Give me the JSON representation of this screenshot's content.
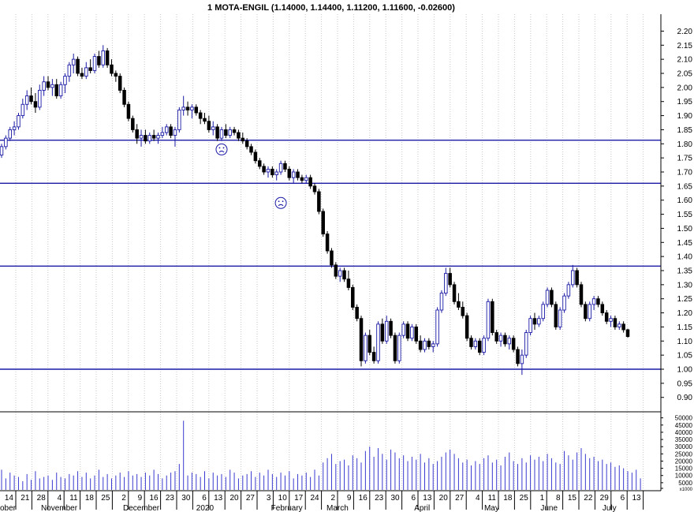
{
  "chart_data": {
    "type": "candlestick",
    "title": "1 MOTA-ENGIL (1.14000, 1.14400, 1.11200, 1.11600, -0.02600)",
    "price_axis": {
      "ylim": [
        0.86,
        2.26
      ],
      "ticks": [
        "2.20",
        "2.15",
        "2.10",
        "2.05",
        "2.00",
        "1.95",
        "1.90",
        "1.85",
        "1.80",
        "1.75",
        "1.70",
        "1.65",
        "1.60",
        "1.55",
        "1.50",
        "1.45",
        "1.40",
        "1.35",
        "1.30",
        "1.25",
        "1.20",
        "1.15",
        "1.10",
        "1.05",
        "1.00",
        "0.95",
        "0.90"
      ]
    },
    "volume_axis": {
      "ylim": [
        0,
        52000
      ],
      "ticks": [
        "50000",
        "45000",
        "40000",
        "35000",
        "30000",
        "25000",
        "20000",
        "15000",
        "10000",
        "5000",
        "x1000"
      ]
    },
    "horizontal_lines": [
      1.813,
      1.66,
      1.366,
      1.0
    ],
    "sad_face_markers": [
      {
        "date": "2020-01-08",
        "price": 1.78
      },
      {
        "date": "2020-02-05",
        "price": 1.59
      }
    ],
    "x_day_labels": [
      "14",
      "21",
      "28",
      "4",
      "11",
      "18",
      "25",
      "2",
      "9",
      "16",
      "23",
      "30",
      "6",
      "13",
      "20",
      "27",
      "3",
      "10",
      "17",
      "24",
      "2",
      "9",
      "16",
      "23",
      "30",
      "6",
      "13",
      "20",
      "27",
      "4",
      "11",
      "18",
      "25",
      "1",
      "8",
      "15",
      "22",
      "29",
      "6",
      "13"
    ],
    "x_month_labels": [
      "ober",
      "November",
      "December",
      "2020",
      "February",
      "March",
      "April",
      "May",
      "June",
      "July"
    ],
    "candles": [
      {
        "o": 1.76,
        "h": 1.8,
        "l": 1.75,
        "c": 1.79
      },
      {
        "o": 1.79,
        "h": 1.83,
        "l": 1.78,
        "c": 1.82
      },
      {
        "o": 1.82,
        "h": 1.86,
        "l": 1.81,
        "c": 1.85
      },
      {
        "o": 1.85,
        "h": 1.88,
        "l": 1.83,
        "c": 1.86
      },
      {
        "o": 1.86,
        "h": 1.91,
        "l": 1.85,
        "c": 1.9
      },
      {
        "o": 1.9,
        "h": 1.96,
        "l": 1.89,
        "c": 1.94
      },
      {
        "o": 1.94,
        "h": 1.99,
        "l": 1.92,
        "c": 1.97
      },
      {
        "o": 1.97,
        "h": 2.0,
        "l": 1.94,
        "c": 1.95
      },
      {
        "o": 1.95,
        "h": 1.98,
        "l": 1.91,
        "c": 1.93
      },
      {
        "o": 1.93,
        "h": 2.01,
        "l": 1.92,
        "c": 1.99
      },
      {
        "o": 1.99,
        "h": 2.04,
        "l": 1.97,
        "c": 2.02
      },
      {
        "o": 2.02,
        "h": 2.04,
        "l": 1.99,
        "c": 2.0
      },
      {
        "o": 2.0,
        "h": 2.03,
        "l": 1.97,
        "c": 2.01
      },
      {
        "o": 2.01,
        "h": 2.03,
        "l": 1.96,
        "c": 1.97
      },
      {
        "o": 1.97,
        "h": 2.02,
        "l": 1.96,
        "c": 2.01
      },
      {
        "o": 2.01,
        "h": 2.05,
        "l": 1.98,
        "c": 2.04
      },
      {
        "o": 2.04,
        "h": 2.09,
        "l": 2.02,
        "c": 2.08
      },
      {
        "o": 2.08,
        "h": 2.12,
        "l": 2.05,
        "c": 2.1
      },
      {
        "o": 2.1,
        "h": 2.11,
        "l": 2.04,
        "c": 2.05
      },
      {
        "o": 2.05,
        "h": 2.07,
        "l": 2.03,
        "c": 2.04
      },
      {
        "o": 2.04,
        "h": 2.09,
        "l": 2.03,
        "c": 2.07
      },
      {
        "o": 2.07,
        "h": 2.1,
        "l": 2.05,
        "c": 2.06
      },
      {
        "o": 2.06,
        "h": 2.12,
        "l": 2.05,
        "c": 2.11
      },
      {
        "o": 2.11,
        "h": 2.13,
        "l": 2.07,
        "c": 2.08
      },
      {
        "o": 2.08,
        "h": 2.15,
        "l": 2.07,
        "c": 2.13
      },
      {
        "o": 2.13,
        "h": 2.14,
        "l": 2.07,
        "c": 2.08
      },
      {
        "o": 2.08,
        "h": 2.1,
        "l": 2.04,
        "c": 2.05
      },
      {
        "o": 2.05,
        "h": 2.06,
        "l": 2.02,
        "c": 2.04
      },
      {
        "o": 2.04,
        "h": 2.05,
        "l": 1.98,
        "c": 1.99
      },
      {
        "o": 1.99,
        "h": 2.0,
        "l": 1.93,
        "c": 1.94
      },
      {
        "o": 1.94,
        "h": 1.95,
        "l": 1.88,
        "c": 1.89
      },
      {
        "o": 1.89,
        "h": 1.9,
        "l": 1.84,
        "c": 1.85
      },
      {
        "o": 1.85,
        "h": 1.87,
        "l": 1.8,
        "c": 1.82
      },
      {
        "o": 1.82,
        "h": 1.85,
        "l": 1.79,
        "c": 1.83
      },
      {
        "o": 1.83,
        "h": 1.85,
        "l": 1.8,
        "c": 1.81
      },
      {
        "o": 1.81,
        "h": 1.84,
        "l": 1.8,
        "c": 1.83
      },
      {
        "o": 1.83,
        "h": 1.85,
        "l": 1.81,
        "c": 1.82
      },
      {
        "o": 1.82,
        "h": 1.84,
        "l": 1.8,
        "c": 1.83
      },
      {
        "o": 1.83,
        "h": 1.86,
        "l": 1.82,
        "c": 1.84
      },
      {
        "o": 1.84,
        "h": 1.87,
        "l": 1.83,
        "c": 1.86
      },
      {
        "o": 1.86,
        "h": 1.87,
        "l": 1.82,
        "c": 1.83
      },
      {
        "o": 1.83,
        "h": 1.86,
        "l": 1.79,
        "c": 1.85
      },
      {
        "o": 1.85,
        "h": 1.93,
        "l": 1.84,
        "c": 1.92
      },
      {
        "o": 1.92,
        "h": 1.97,
        "l": 1.9,
        "c": 1.93
      },
      {
        "o": 1.93,
        "h": 1.95,
        "l": 1.9,
        "c": 1.92
      },
      {
        "o": 1.92,
        "h": 1.94,
        "l": 1.89,
        "c": 1.93
      },
      {
        "o": 1.93,
        "h": 1.94,
        "l": 1.9,
        "c": 1.91
      },
      {
        "o": 1.91,
        "h": 1.92,
        "l": 1.87,
        "c": 1.89
      },
      {
        "o": 1.89,
        "h": 1.91,
        "l": 1.87,
        "c": 1.88
      },
      {
        "o": 1.88,
        "h": 1.9,
        "l": 1.84,
        "c": 1.85
      },
      {
        "o": 1.85,
        "h": 1.88,
        "l": 1.83,
        "c": 1.86
      },
      {
        "o": 1.86,
        "h": 1.87,
        "l": 1.81,
        "c": 1.82
      },
      {
        "o": 1.82,
        "h": 1.86,
        "l": 1.81,
        "c": 1.85
      },
      {
        "o": 1.85,
        "h": 1.87,
        "l": 1.82,
        "c": 1.83
      },
      {
        "o": 1.83,
        "h": 1.86,
        "l": 1.82,
        "c": 1.85
      },
      {
        "o": 1.85,
        "h": 1.86,
        "l": 1.83,
        "c": 1.84
      },
      {
        "o": 1.84,
        "h": 1.85,
        "l": 1.81,
        "c": 1.82
      },
      {
        "o": 1.82,
        "h": 1.84,
        "l": 1.8,
        "c": 1.81
      },
      {
        "o": 1.81,
        "h": 1.82,
        "l": 1.78,
        "c": 1.79
      },
      {
        "o": 1.79,
        "h": 1.8,
        "l": 1.76,
        "c": 1.77
      },
      {
        "o": 1.77,
        "h": 1.78,
        "l": 1.73,
        "c": 1.74
      },
      {
        "o": 1.74,
        "h": 1.75,
        "l": 1.71,
        "c": 1.72
      },
      {
        "o": 1.72,
        "h": 1.73,
        "l": 1.69,
        "c": 1.7
      },
      {
        "o": 1.7,
        "h": 1.72,
        "l": 1.68,
        "c": 1.71
      },
      {
        "o": 1.71,
        "h": 1.72,
        "l": 1.68,
        "c": 1.69
      },
      {
        "o": 1.69,
        "h": 1.71,
        "l": 1.67,
        "c": 1.7
      },
      {
        "o": 1.7,
        "h": 1.74,
        "l": 1.69,
        "c": 1.73
      },
      {
        "o": 1.73,
        "h": 1.74,
        "l": 1.7,
        "c": 1.71
      },
      {
        "o": 1.71,
        "h": 1.72,
        "l": 1.67,
        "c": 1.68
      },
      {
        "o": 1.68,
        "h": 1.71,
        "l": 1.66,
        "c": 1.7
      },
      {
        "o": 1.7,
        "h": 1.71,
        "l": 1.67,
        "c": 1.68
      },
      {
        "o": 1.68,
        "h": 1.69,
        "l": 1.66,
        "c": 1.67
      },
      {
        "o": 1.67,
        "h": 1.69,
        "l": 1.66,
        "c": 1.68
      },
      {
        "o": 1.68,
        "h": 1.69,
        "l": 1.64,
        "c": 1.65
      },
      {
        "o": 1.65,
        "h": 1.66,
        "l": 1.62,
        "c": 1.63
      },
      {
        "o": 1.63,
        "h": 1.64,
        "l": 1.55,
        "c": 1.56
      },
      {
        "o": 1.56,
        "h": 1.57,
        "l": 1.47,
        "c": 1.48
      },
      {
        "o": 1.48,
        "h": 1.49,
        "l": 1.41,
        "c": 1.42
      },
      {
        "o": 1.42,
        "h": 1.43,
        "l": 1.36,
        "c": 1.37
      },
      {
        "o": 1.37,
        "h": 1.38,
        "l": 1.32,
        "c": 1.33
      },
      {
        "o": 1.33,
        "h": 1.36,
        "l": 1.31,
        "c": 1.35
      },
      {
        "o": 1.35,
        "h": 1.36,
        "l": 1.31,
        "c": 1.32
      },
      {
        "o": 1.32,
        "h": 1.35,
        "l": 1.28,
        "c": 1.29
      },
      {
        "o": 1.29,
        "h": 1.3,
        "l": 1.21,
        "c": 1.22
      },
      {
        "o": 1.22,
        "h": 1.23,
        "l": 1.17,
        "c": 1.18
      },
      {
        "o": 1.18,
        "h": 1.19,
        "l": 1.01,
        "c": 1.03
      },
      {
        "o": 1.03,
        "h": 1.13,
        "l": 1.02,
        "c": 1.12
      },
      {
        "o": 1.12,
        "h": 1.14,
        "l": 1.05,
        "c": 1.06
      },
      {
        "o": 1.06,
        "h": 1.08,
        "l": 1.02,
        "c": 1.03
      },
      {
        "o": 1.03,
        "h": 1.17,
        "l": 1.02,
        "c": 1.16
      },
      {
        "o": 1.16,
        "h": 1.18,
        "l": 1.09,
        "c": 1.1
      },
      {
        "o": 1.1,
        "h": 1.19,
        "l": 1.09,
        "c": 1.17
      },
      {
        "o": 1.17,
        "h": 1.18,
        "l": 1.11,
        "c": 1.12
      },
      {
        "o": 1.12,
        "h": 1.13,
        "l": 1.02,
        "c": 1.03
      },
      {
        "o": 1.03,
        "h": 1.13,
        "l": 1.02,
        "c": 1.12
      },
      {
        "o": 1.12,
        "h": 1.17,
        "l": 1.11,
        "c": 1.16
      },
      {
        "o": 1.16,
        "h": 1.17,
        "l": 1.1,
        "c": 1.11
      },
      {
        "o": 1.11,
        "h": 1.16,
        "l": 1.1,
        "c": 1.15
      },
      {
        "o": 1.15,
        "h": 1.16,
        "l": 1.09,
        "c": 1.1
      },
      {
        "o": 1.1,
        "h": 1.12,
        "l": 1.06,
        "c": 1.07
      },
      {
        "o": 1.07,
        "h": 1.11,
        "l": 1.06,
        "c": 1.1
      },
      {
        "o": 1.1,
        "h": 1.11,
        "l": 1.07,
        "c": 1.08
      },
      {
        "o": 1.08,
        "h": 1.1,
        "l": 1.06,
        "c": 1.09
      },
      {
        "o": 1.09,
        "h": 1.22,
        "l": 1.08,
        "c": 1.21
      },
      {
        "o": 1.21,
        "h": 1.28,
        "l": 1.2,
        "c": 1.27
      },
      {
        "o": 1.27,
        "h": 1.36,
        "l": 1.26,
        "c": 1.34
      },
      {
        "o": 1.34,
        "h": 1.36,
        "l": 1.29,
        "c": 1.3
      },
      {
        "o": 1.3,
        "h": 1.31,
        "l": 1.23,
        "c": 1.24
      },
      {
        "o": 1.24,
        "h": 1.27,
        "l": 1.21,
        "c": 1.22
      },
      {
        "o": 1.22,
        "h": 1.24,
        "l": 1.18,
        "c": 1.19
      },
      {
        "o": 1.19,
        "h": 1.2,
        "l": 1.1,
        "c": 1.11
      },
      {
        "o": 1.11,
        "h": 1.12,
        "l": 1.07,
        "c": 1.08
      },
      {
        "o": 1.08,
        "h": 1.11,
        "l": 1.07,
        "c": 1.1
      },
      {
        "o": 1.1,
        "h": 1.11,
        "l": 1.05,
        "c": 1.06
      },
      {
        "o": 1.06,
        "h": 1.12,
        "l": 1.05,
        "c": 1.11
      },
      {
        "o": 1.11,
        "h": 1.25,
        "l": 1.1,
        "c": 1.24
      },
      {
        "o": 1.24,
        "h": 1.25,
        "l": 1.12,
        "c": 1.13
      },
      {
        "o": 1.13,
        "h": 1.14,
        "l": 1.09,
        "c": 1.1
      },
      {
        "o": 1.1,
        "h": 1.13,
        "l": 1.08,
        "c": 1.12
      },
      {
        "o": 1.12,
        "h": 1.13,
        "l": 1.08,
        "c": 1.09
      },
      {
        "o": 1.09,
        "h": 1.12,
        "l": 1.07,
        "c": 1.11
      },
      {
        "o": 1.11,
        "h": 1.12,
        "l": 1.06,
        "c": 1.07
      },
      {
        "o": 1.07,
        "h": 1.08,
        "l": 1.01,
        "c": 1.02
      },
      {
        "o": 1.02,
        "h": 1.07,
        "l": 0.98,
        "c": 1.05
      },
      {
        "o": 1.05,
        "h": 1.14,
        "l": 1.04,
        "c": 1.13
      },
      {
        "o": 1.13,
        "h": 1.19,
        "l": 1.12,
        "c": 1.18
      },
      {
        "o": 1.18,
        "h": 1.2,
        "l": 1.14,
        "c": 1.16
      },
      {
        "o": 1.16,
        "h": 1.19,
        "l": 1.15,
        "c": 1.18
      },
      {
        "o": 1.18,
        "h": 1.24,
        "l": 1.17,
        "c": 1.23
      },
      {
        "o": 1.23,
        "h": 1.29,
        "l": 1.22,
        "c": 1.28
      },
      {
        "o": 1.28,
        "h": 1.29,
        "l": 1.22,
        "c": 1.23
      },
      {
        "o": 1.23,
        "h": 1.24,
        "l": 1.14,
        "c": 1.15
      },
      {
        "o": 1.15,
        "h": 1.22,
        "l": 1.14,
        "c": 1.21
      },
      {
        "o": 1.21,
        "h": 1.27,
        "l": 1.2,
        "c": 1.26
      },
      {
        "o": 1.26,
        "h": 1.31,
        "l": 1.25,
        "c": 1.3
      },
      {
        "o": 1.3,
        "h": 1.37,
        "l": 1.29,
        "c": 1.35
      },
      {
        "o": 1.35,
        "h": 1.36,
        "l": 1.29,
        "c": 1.3
      },
      {
        "o": 1.3,
        "h": 1.31,
        "l": 1.22,
        "c": 1.23
      },
      {
        "o": 1.23,
        "h": 1.24,
        "l": 1.17,
        "c": 1.18
      },
      {
        "o": 1.18,
        "h": 1.24,
        "l": 1.17,
        "c": 1.23
      },
      {
        "o": 1.23,
        "h": 1.26,
        "l": 1.21,
        "c": 1.25
      },
      {
        "o": 1.25,
        "h": 1.26,
        "l": 1.22,
        "c": 1.23
      },
      {
        "o": 1.23,
        "h": 1.24,
        "l": 1.19,
        "c": 1.2
      },
      {
        "o": 1.2,
        "h": 1.21,
        "l": 1.16,
        "c": 1.17
      },
      {
        "o": 1.17,
        "h": 1.19,
        "l": 1.15,
        "c": 1.18
      },
      {
        "o": 1.18,
        "h": 1.19,
        "l": 1.14,
        "c": 1.15
      },
      {
        "o": 1.15,
        "h": 1.17,
        "l": 1.14,
        "c": 1.16
      },
      {
        "o": 1.16,
        "h": 1.17,
        "l": 1.13,
        "c": 1.14
      },
      {
        "o": 1.14,
        "h": 1.144,
        "l": 1.112,
        "c": 1.116
      }
    ],
    "volume_x1000": [
      14,
      8,
      12,
      10,
      9,
      6,
      11,
      7,
      13,
      8,
      9,
      10,
      7,
      12,
      9,
      8,
      11,
      10,
      13,
      9,
      12,
      8,
      10,
      14,
      9,
      11,
      8,
      10,
      12,
      9,
      13,
      10,
      11,
      9,
      12,
      10,
      14,
      11,
      8,
      10,
      12,
      13,
      18,
      48,
      10,
      12,
      11,
      9,
      13,
      8,
      12,
      10,
      11,
      9,
      14,
      12,
      8,
      10,
      11,
      13,
      9,
      12,
      10,
      14,
      11,
      9,
      12,
      10,
      13,
      8,
      11,
      10,
      12,
      9,
      14,
      10,
      19,
      22,
      25,
      18,
      20,
      21,
      17,
      24,
      22,
      19,
      27,
      30,
      23,
      29,
      25,
      21,
      28,
      26,
      22,
      24,
      20,
      23,
      21,
      25,
      19,
      22,
      18,
      20,
      23,
      26,
      28,
      25,
      22,
      19,
      21,
      17,
      20,
      18,
      22,
      24,
      19,
      21,
      17,
      23,
      26,
      20,
      18,
      22,
      19,
      24,
      21,
      23,
      20,
      25,
      22,
      19,
      18,
      27,
      24,
      21,
      26,
      29,
      25,
      22,
      23,
      20,
      21,
      18,
      19,
      16,
      17,
      15,
      13,
      12,
      14,
      8
    ]
  }
}
